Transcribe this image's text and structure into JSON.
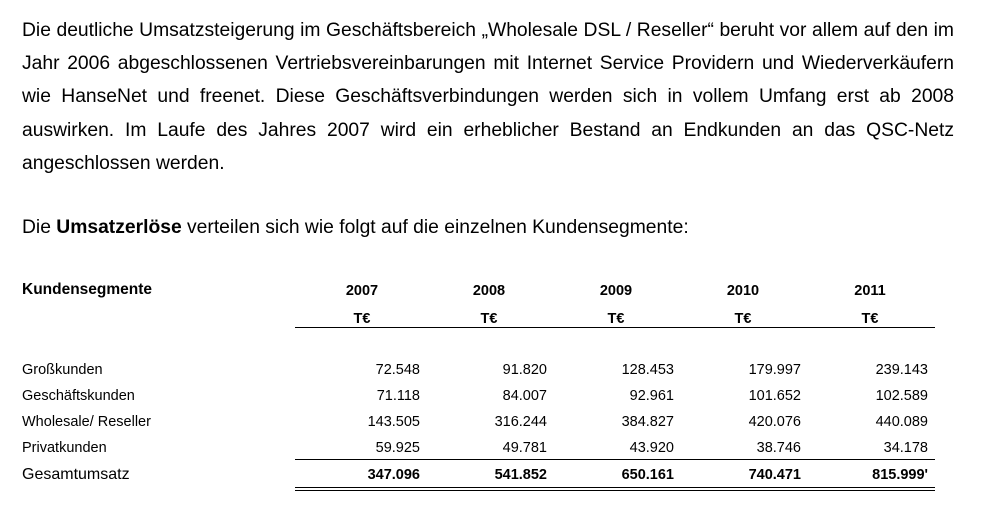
{
  "paragraph1": "Die deutliche Umsatzsteigerung im Geschäftsbereich „Wholesale DSL / Reseller“ beruht vor allem auf den im Jahr 2006 abgeschlossenen Vertriebsvereinbarungen mit Internet Service Providern und Wiederverkäufern wie HanseNet und freenet. Diese Geschäftsverbindungen werden sich in vollem Umfang erst ab 2008 auswirken. Im Laufe des Jahres 2007 wird ein erheblicher Bestand an Endkunden an das QSC-Netz angeschlossen werden.",
  "paragraph2": {
    "pre": "Die ",
    "bold": "Umsatzerlöse",
    "post": " verteilen sich wie folgt auf die einzelnen Kundensegmente:"
  },
  "table": {
    "header": "Kundensegmente",
    "years": [
      "2007",
      "2008",
      "2009",
      "2010",
      "2011"
    ],
    "units": [
      "T€",
      "T€",
      "T€",
      "T€",
      "T€"
    ],
    "rows": [
      {
        "label": "Großkunden",
        "values": [
          "72.548",
          "91.820",
          "128.453",
          "179.997",
          "239.143"
        ]
      },
      {
        "label": "Geschäftskunden",
        "values": [
          "71.118",
          "84.007",
          "92.961",
          "101.652",
          "102.589"
        ]
      },
      {
        "label": "Wholesale/ Reseller",
        "values": [
          "143.505",
          "316.244",
          "384.827",
          "420.076",
          "440.089"
        ]
      },
      {
        "label": "Privatkunden",
        "values": [
          "59.925",
          "49.781",
          "43.920",
          "38.746",
          "34.178"
        ]
      }
    ],
    "total": {
      "label": "Gesamtumsatz",
      "values": [
        "347.096",
        "541.852",
        "650.161",
        "740.471",
        "815.999'"
      ]
    }
  }
}
